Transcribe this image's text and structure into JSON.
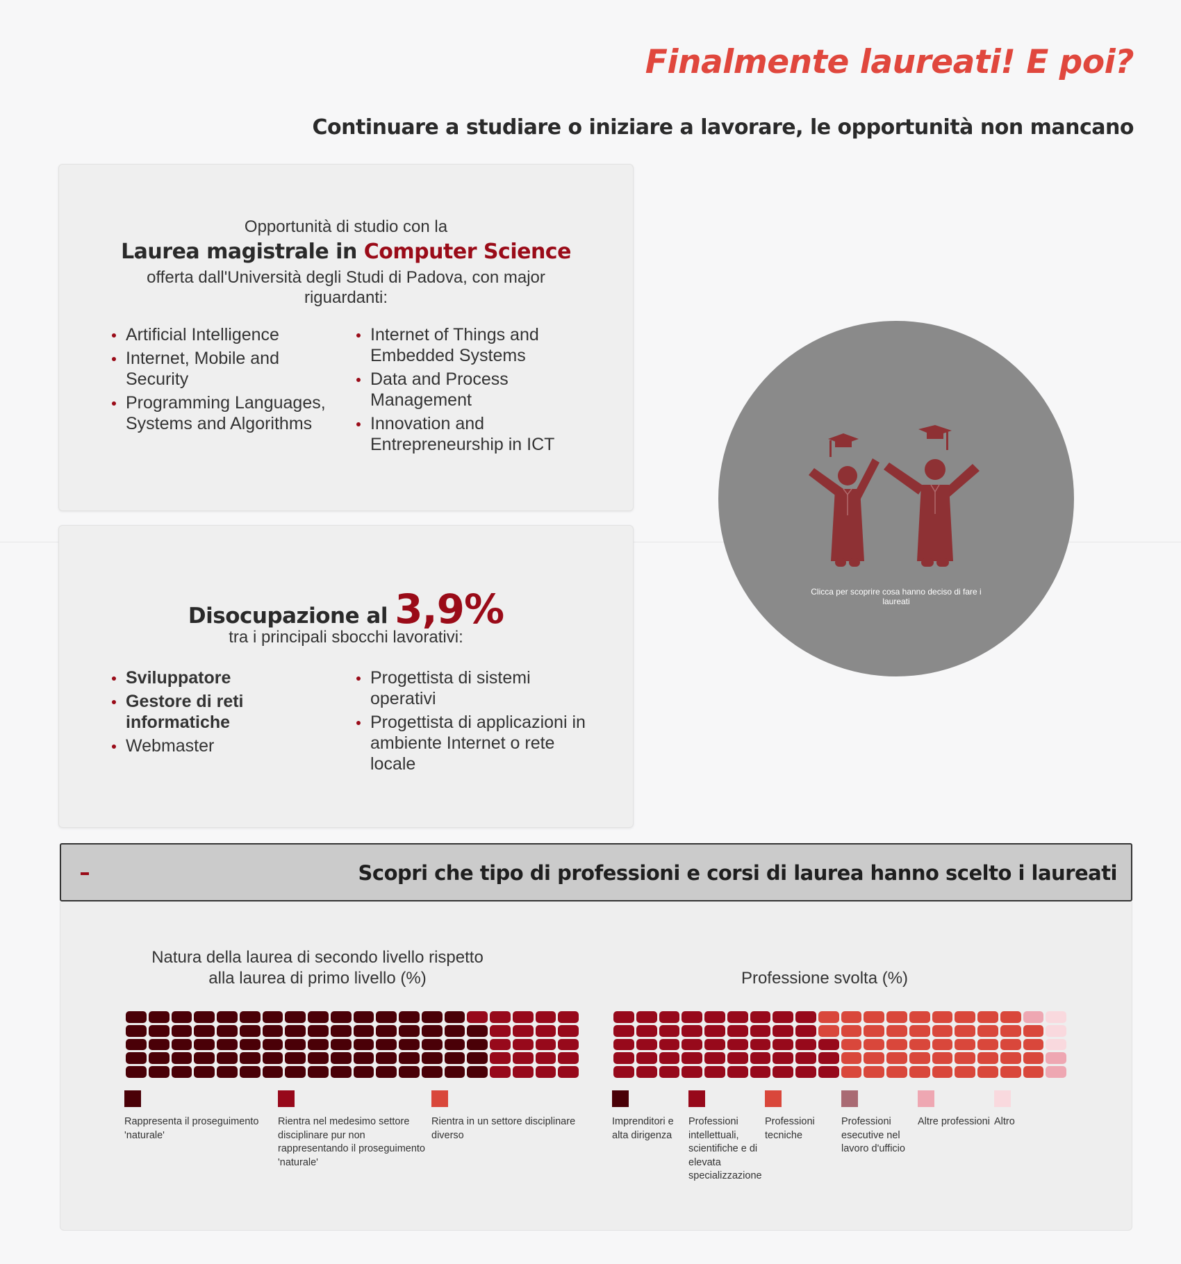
{
  "header": {
    "title": "Finalmente laureati! E poi?",
    "subtitle": "Continuare a studiare o iniziare a lavorare, le opportunità non mancano"
  },
  "study_card": {
    "intro": "Opportunità di studio con la",
    "heading_prefix": "Laurea magistrale in ",
    "heading_highlight": "Computer Science",
    "description": "offerta dall'Università degli Studi di Padova, con major riguardanti:",
    "majors_left": [
      "Artificial Intelligence",
      "Internet, Mobile and Security",
      "Programming Languages, Systems and Algorithms"
    ],
    "majors_right": [
      "Internet of Things and Embedded Systems",
      "Data and Process Management",
      "Innovation and Entrepreneurship in ICT"
    ]
  },
  "jobs_card": {
    "heading_prefix": "Disocupazione al ",
    "rate": "3,9%",
    "description": "tra i principali sbocchi lavorativi:",
    "jobs_left": [
      {
        "label": "Sviluppatore",
        "bold": true
      },
      {
        "label": "Gestore di reti informatiche",
        "bold": true
      },
      {
        "label": "Webmaster",
        "bold": false
      }
    ],
    "jobs_right": [
      {
        "label": "Progettista di sistemi operativi",
        "bold": false
      },
      {
        "label": "Progettista di applicazioni in ambiente Internet o rete locale",
        "bold": false
      }
    ]
  },
  "reveal_circle": {
    "icon": "graduates-icon",
    "caption": "Clicca per scoprire cosa hanno deciso di fare i laureati",
    "colors": {
      "background": "#8a8a8a",
      "icon": "#8e3134"
    }
  },
  "accordion": {
    "toggle_icon": "minus-icon",
    "title": "Scopri che tipo di professioni e corsi di laurea hanno scelto i laureati"
  },
  "chart_data": [
    {
      "type": "waffle",
      "title": "Natura della laurea di secondo livello rispetto alla laurea di primo livello (%)",
      "grid": {
        "rows": 5,
        "cols": 20
      },
      "categories": [
        {
          "label": "Rappresenta il proseguimento 'naturale'",
          "value": 79,
          "color": "#4a0007"
        },
        {
          "label": "Rientra nel medesimo settore disciplinare pur non rappresentando il proseguimento 'naturale'",
          "value": 21,
          "color": "#97091b"
        },
        {
          "label": "Rientra in un settore disciplinare diverso",
          "value": 0,
          "color": "#d9473b"
        }
      ]
    },
    {
      "type": "waffle",
      "title": "Professione svolta (%)",
      "grid": {
        "rows": 5,
        "cols": 20
      },
      "categories": [
        {
          "label": "Imprenditori e alta dirigenza",
          "value": 0,
          "color": "#4a0007"
        },
        {
          "label": "Professioni intellettuali, scientifiche e di elevata specializzazione",
          "value": 48,
          "color": "#97091b"
        },
        {
          "label": "Professioni tecniche",
          "value": 46,
          "color": "#d9473b"
        },
        {
          "label": "Professioni esecutive nel lavoro d'ufficio",
          "value": 0,
          "color": "#a96a73"
        },
        {
          "label": "Altre professioni",
          "value": 3,
          "color": "#eea7b2"
        },
        {
          "label": "Altro",
          "value": 3,
          "color": "#f9d9de"
        }
      ]
    }
  ]
}
